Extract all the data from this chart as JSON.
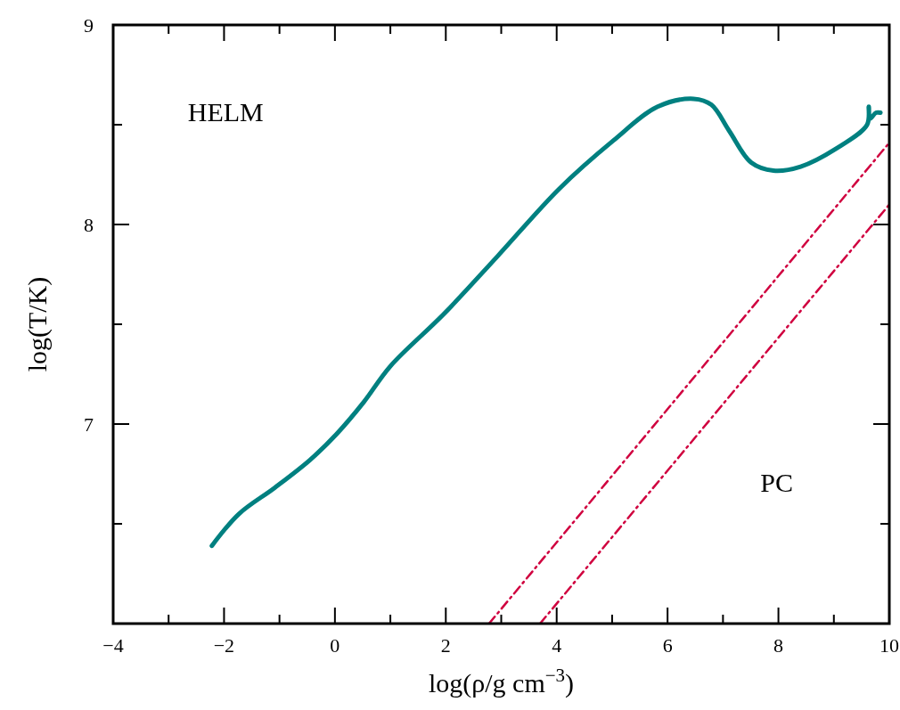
{
  "chart_data": {
    "type": "line",
    "xlabel": "log(ρ/g cm$^{−3}$)",
    "ylabel": "log(T/K)",
    "xlim": [
      -4,
      10
    ],
    "ylim": [
      6,
      9
    ],
    "xticks": [
      {
        "value": -4,
        "label": "−4"
      },
      {
        "value": -3,
        "label": null
      },
      {
        "value": -2,
        "label": "−2"
      },
      {
        "value": -1,
        "label": null
      },
      0,
      {
        "value": 1,
        "label": null
      },
      2,
      {
        "value": 3,
        "label": null
      },
      4,
      {
        "value": 5,
        "label": null
      },
      6,
      {
        "value": 7,
        "label": null
      },
      8,
      {
        "value": 9,
        "label": null
      },
      10
    ],
    "yticks": [
      {
        "value": 6.5,
        "label": null
      },
      7,
      {
        "value": 7.5,
        "label": null
      },
      8,
      {
        "value": 8.5,
        "label": null
      },
      9
    ],
    "grid": false,
    "series": [
      {
        "color": "#008080",
        "line_style": "solid",
        "x": [
          -2.22,
          -1.73,
          -1.09,
          -0.45,
          0.03,
          0.52,
          1.0,
          1.96,
          2.93,
          4.05,
          5.02,
          5.82,
          6.47,
          6.79,
          7.11,
          7.51,
          7.91,
          8.4,
          9.04,
          9.6,
          9.63,
          9.65,
          9.76,
          9.84
        ],
        "values": [
          6.39,
          6.55,
          6.68,
          6.82,
          6.95,
          7.11,
          7.29,
          7.55,
          7.84,
          8.18,
          8.42,
          8.59,
          8.63,
          8.6,
          8.47,
          8.31,
          8.27,
          8.29,
          8.38,
          8.5,
          8.59,
          8.53,
          8.56,
          8.56
        ]
      },
      {
        "color": "#d0003f",
        "line_style": "dashdot",
        "x": [
          2.78,
          10
        ],
        "values": [
          6,
          8.41
        ]
      },
      {
        "color": "#d0003f",
        "line_style": "dashdot",
        "x": [
          3.7,
          10
        ],
        "values": [
          6,
          8.1
        ]
      }
    ],
    "annotations": [
      "HELM",
      "PC"
    ]
  }
}
